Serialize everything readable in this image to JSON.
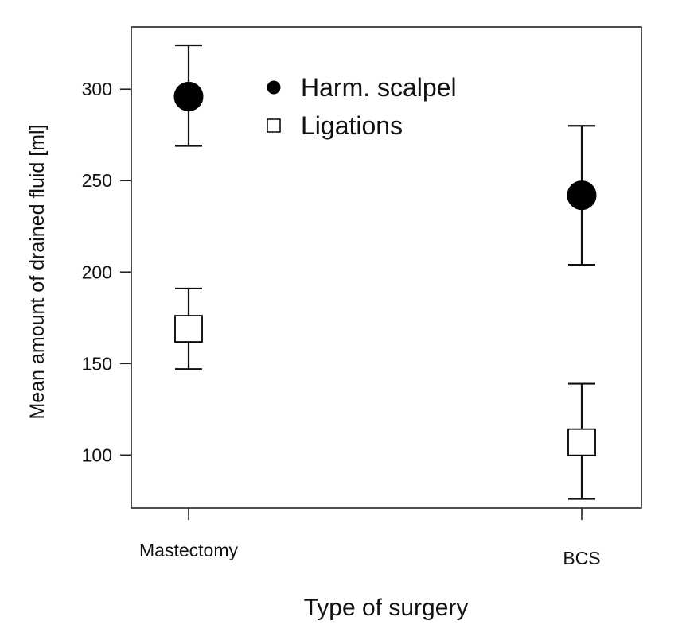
{
  "chart_data": {
    "type": "scatter",
    "xlabel": "Type of surgery",
    "ylabel": "Mean amount of drained fluid [ml]",
    "categories": [
      "Mastectomy",
      "BCS"
    ],
    "ylim": [
      71,
      334
    ],
    "y_ticks": [
      100,
      150,
      200,
      250,
      300
    ],
    "grid": false,
    "legend_position": "top-center",
    "series": [
      {
        "name": "Harm. scalpel",
        "marker": "filled-circle",
        "color": "#000000",
        "values": [
          296,
          242
        ],
        "error_low": [
          269,
          204
        ],
        "error_high": [
          324,
          280
        ]
      },
      {
        "name": "Ligations",
        "marker": "open-square",
        "color": "#000000",
        "values": [
          169,
          107
        ],
        "error_low": [
          147,
          76
        ],
        "error_high": [
          191,
          139
        ]
      }
    ]
  }
}
